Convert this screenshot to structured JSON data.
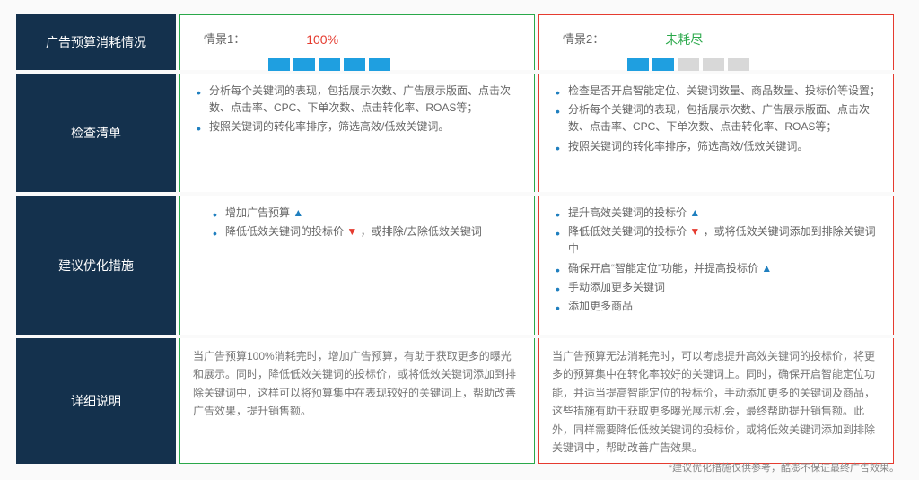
{
  "colors": {
    "header_bg": "#14314d",
    "green": "#2aa84a",
    "red": "#e53b2f",
    "blue": "#1f9fe0",
    "bullet_blue": "#1f7fbf",
    "gray_sq": "#d8d8d8",
    "text": "#666"
  },
  "rows": {
    "r1": "广告预算消耗情况",
    "r2": "检查清单",
    "r3": "建议优化措施",
    "r4": "详细说明"
  },
  "scenario1": {
    "label": "情景1：",
    "value": "100%",
    "bars_filled": 5,
    "bars_total": 5,
    "checklist": [
      "分析每个关键词的表现，包括展示次数、广告展示版面、点击次数、点击率、CPC、下单次数、点击转化率、ROAS等；",
      "按照关键词的转化率排序，筛选高效/低效关键词。"
    ],
    "actions": [
      {
        "text": "增加广告预算",
        "arrow": "up"
      },
      {
        "text_pre": "降低低效关键词的投标价",
        "arrow": "down",
        "text_post": "，或排除/去除低效关键词"
      }
    ],
    "details": "当广告预算100%消耗完时，增加广告预算，有助于获取更多的曝光和展示。同时，降低低效关键词的投标价，或将低效关键词添加到排除关键词中，这样可以将预算集中在表现较好的关键词上，帮助改善广告效果，提升销售额。"
  },
  "scenario2": {
    "label": "情景2：",
    "value": "未耗尽",
    "bars_filled": 2,
    "bars_total": 5,
    "checklist": [
      "检查是否开启智能定位、关键词数量、商品数量、投标价等设置；",
      "分析每个关键词的表现，包括展示次数、广告展示版面、点击次数、点击率、CPC、下单次数、点击转化率、ROAS等；",
      "按照关键词的转化率排序，筛选高效/低效关键词。"
    ],
    "actions": [
      {
        "text": "提升高效关键词的投标价",
        "arrow": "up"
      },
      {
        "text_pre": "降低低效关键词的投标价",
        "arrow": "down",
        "text_post": "，或将低效关键词添加到排除关键词中"
      },
      {
        "text_pre": "确保开启“智能定位”功能，并提高投标价",
        "arrow": "up"
      },
      {
        "text": "手动添加更多关键词"
      },
      {
        "text": "添加更多商品"
      }
    ],
    "details": "当广告预算无法消耗完时，可以考虑提升高效关键词的投标价，将更多的预算集中在转化率较好的关键词上。同时，确保开启智能定位功能，并适当提高智能定位的投标价，手动添加更多的关键词及商品，这些措施有助于获取更多曝光展示机会，最终帮助提升销售额。此外，同样需要降低低效关键词的投标价，或将低效关键词添加到排除关键词中，帮助改善广告效果。"
  },
  "footnote": "*建议优化措施仅供参考，酷澎不保证最终广告效果。"
}
